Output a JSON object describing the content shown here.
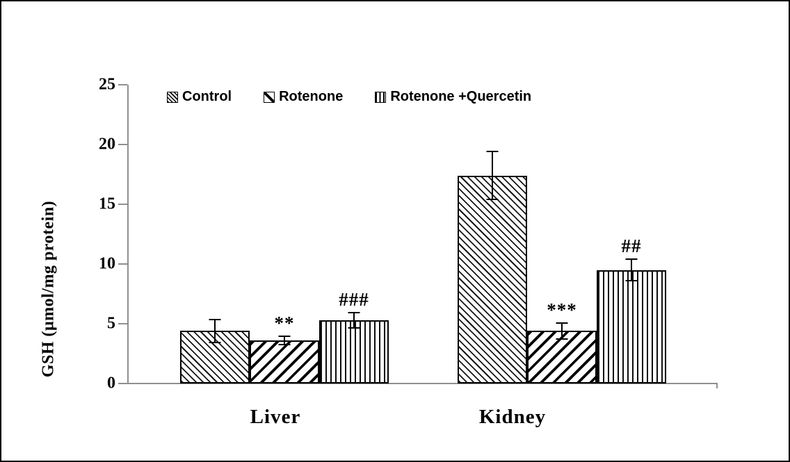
{
  "figure": {
    "background": "#ffffff",
    "border_color": "#000000"
  },
  "chart_data": {
    "type": "bar",
    "title": "",
    "xlabel": "",
    "ylabel": "GSH (μmol/mg protein)",
    "ylim": [
      0,
      25
    ],
    "yticks": [
      0,
      5,
      10,
      15,
      20,
      25
    ],
    "categories": [
      "Liver",
      "Kidney"
    ],
    "grid": false,
    "legend_position": "top-inside",
    "series": [
      {
        "name": "Control",
        "hatch": "backslash-diagonal",
        "values": [
          4.4,
          17.4
        ],
        "errors": [
          0.95,
          2.0
        ],
        "annotations": [
          "",
          ""
        ]
      },
      {
        "name": "Rotenone",
        "hatch": "forward-diagonal",
        "values": [
          3.6,
          4.4
        ],
        "errors": [
          0.35,
          0.65
        ],
        "annotations": [
          "**",
          "***"
        ]
      },
      {
        "name": "Rotenone +Quercetin",
        "hatch": "vertical-lines",
        "values": [
          5.3,
          9.5
        ],
        "errors": [
          0.65,
          0.9
        ],
        "annotations": [
          "###",
          "##"
        ]
      }
    ],
    "colors": {
      "bar_fill": "#ffffff",
      "bar_edge": "#000000",
      "hatch": "#111111",
      "axis": "#8f8f8f",
      "text": "#000000"
    }
  }
}
